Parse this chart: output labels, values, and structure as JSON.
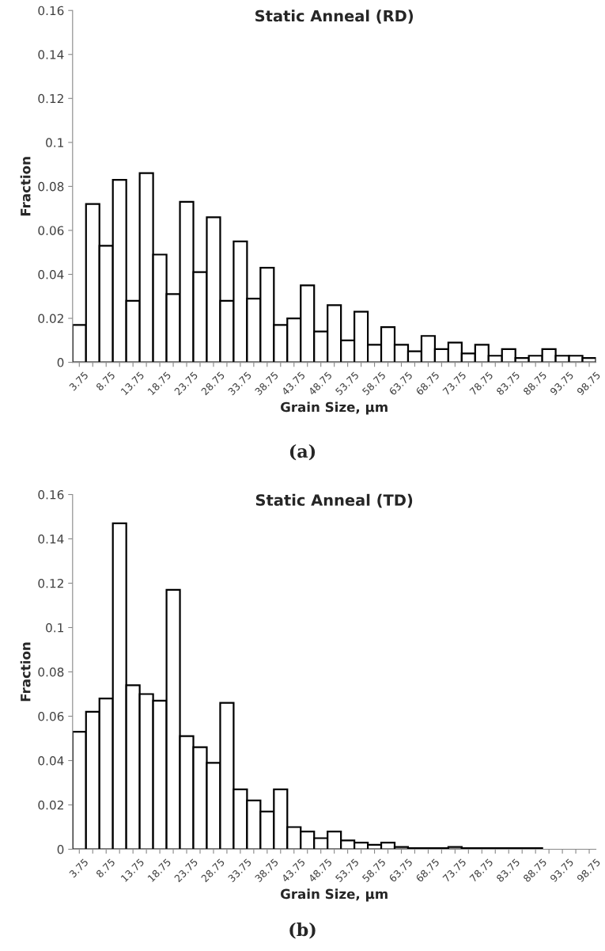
{
  "chart_data": [
    {
      "type": "bar",
      "title": "Static Anneal (RD)",
      "xlabel": "Grain Size, µm",
      "ylabel": "Fraction",
      "categories": [
        "3.75",
        null,
        "8.75",
        null,
        "13.75",
        null,
        "18.75",
        null,
        "23.75",
        null,
        "28.75",
        null,
        "33.75",
        null,
        "38.75",
        null,
        "43.75",
        null,
        "48.75",
        null,
        "53.75",
        null,
        "58.75",
        null,
        "63.75",
        null,
        "68.75",
        null,
        "73.75",
        null,
        "78.75",
        null,
        "83.75",
        null,
        "88.75",
        null,
        "93.75",
        null,
        "98.75"
      ],
      "values": [
        0.017,
        0.072,
        0.053,
        0.083,
        0.028,
        0.086,
        0.049,
        0.031,
        0.073,
        0.041,
        0.066,
        0.028,
        0.055,
        0.029,
        0.043,
        0.017,
        0.02,
        0.035,
        0.014,
        0.026,
        0.01,
        0.023,
        0.008,
        0.016,
        0.008,
        0.005,
        0.012,
        0.006,
        0.009,
        0.004,
        0.008,
        0.003,
        0.006,
        0.002,
        0.003,
        0.006,
        0.003,
        0.003,
        0.002
      ],
      "color": "#ffffff",
      "ylim": [
        0,
        0.16
      ],
      "yticks": [
        0,
        0.02,
        0.04,
        0.06,
        0.08,
        {
          "value": 0.1,
          "label": "0.1"
        },
        0.12,
        0.14,
        0.16
      ],
      "grid": false,
      "annotations": [
        "(a)"
      ]
    },
    {
      "type": "bar",
      "title": "Static Anneal (TD)",
      "xlabel": "Grain Size, µm",
      "ylabel": "Fraction",
      "categories": [
        "3.75",
        null,
        "8.75",
        null,
        "13.75",
        null,
        "18.75",
        null,
        "23.75",
        null,
        "28.75",
        null,
        "33.75",
        null,
        "38.75",
        null,
        "43.75",
        null,
        "48.75",
        null,
        "53.75",
        null,
        "58.75",
        null,
        "63.75",
        null,
        "68.75",
        null,
        "73.75",
        null,
        "78.75",
        null,
        "83.75",
        null,
        "88.75",
        null,
        "93.75",
        null,
        "98.75"
      ],
      "values": [
        0.053,
        0.062,
        0.068,
        0.147,
        0.074,
        0.07,
        0.067,
        0.117,
        0.051,
        0.046,
        0.039,
        0.066,
        0.027,
        0.022,
        0.017,
        0.027,
        0.01,
        0.008,
        0.005,
        0.008,
        0.004,
        0.003,
        0.002,
        0.003,
        0.001,
        0.0005,
        0.0005,
        0.0005,
        0.001,
        0.0005,
        0.0005,
        0.0005,
        0.0005,
        0.0005,
        0.0005,
        null,
        null,
        null,
        null
      ],
      "color": "#ffffff",
      "ylim": [
        0,
        0.16
      ],
      "yticks": [
        0,
        0.02,
        0.04,
        0.06,
        0.08,
        {
          "value": 0.1,
          "label": "0.1"
        },
        0.12,
        0.14,
        0.16
      ],
      "grid": false,
      "annotations": [
        "(b)"
      ]
    }
  ]
}
